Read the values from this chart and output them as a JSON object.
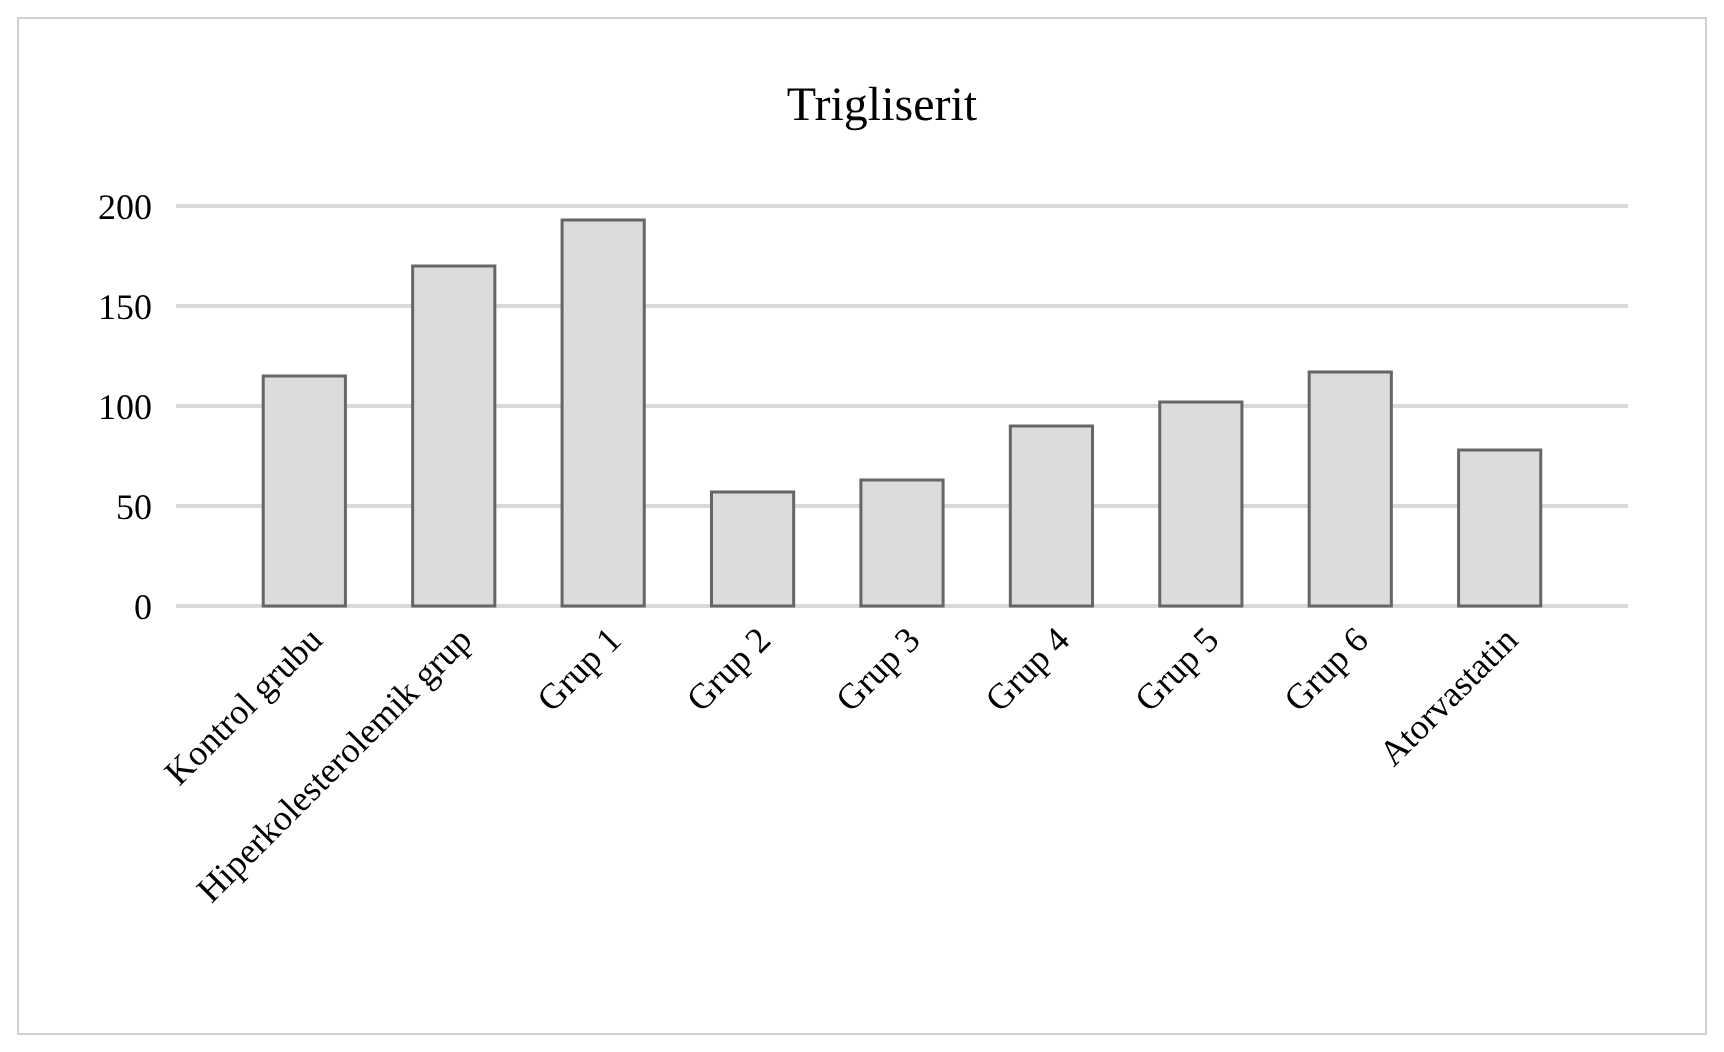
{
  "chart_data": {
    "type": "bar",
    "title": "Trigliserit",
    "categories": [
      "Kontrol grubu",
      "Hiperkolesterolemik grup",
      "Grup 1",
      "Grup 2",
      "Grup 3",
      "Grup 4",
      "Grup 5",
      "Grup 6",
      "Atorvastatin"
    ],
    "values": [
      115,
      170,
      193,
      57,
      63,
      90,
      102,
      117,
      78
    ],
    "color": "#dcdcdc",
    "ylim": [
      0,
      200
    ],
    "yticks": [
      0,
      50,
      100,
      150,
      200
    ],
    "grid": "y"
  }
}
